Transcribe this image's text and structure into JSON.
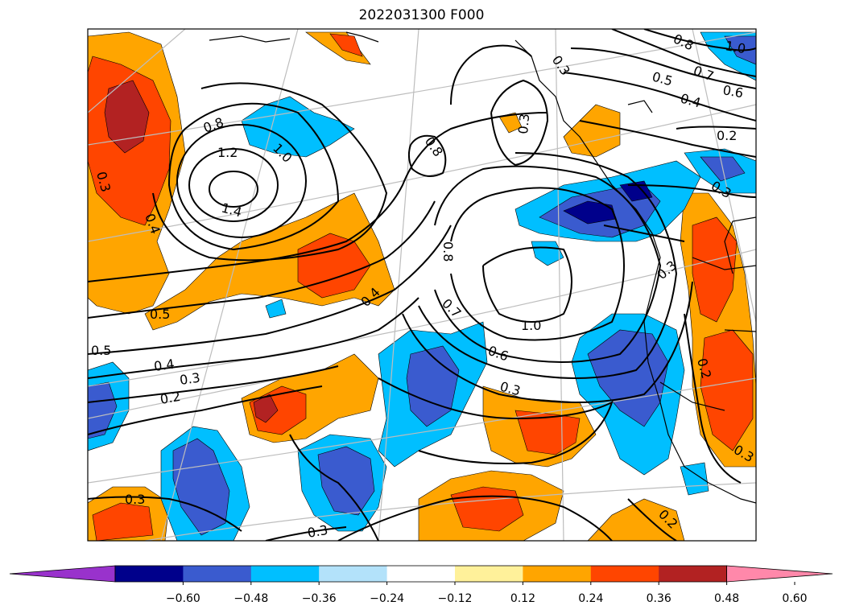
{
  "title": "2022031300 F000",
  "colorbar": {
    "extend_low_color": "#9932cc",
    "extend_high_color": "#ff88aa",
    "bins": [
      {
        "color": "#00008b"
      },
      {
        "color": "#3a5bcf"
      },
      {
        "color": "#00bfff"
      },
      {
        "color": "#b3e2fa"
      },
      {
        "color": "#ffffff"
      },
      {
        "color": "#fff19a"
      },
      {
        "color": "#ffa500"
      },
      {
        "color": "#ff4500"
      },
      {
        "color": "#b22222"
      }
    ],
    "ticks": [
      "−0.60",
      "−0.48",
      "−0.36",
      "−0.24",
      "−0.12",
      "0.12",
      "0.24",
      "0.36",
      "0.48",
      "0.60"
    ]
  },
  "contour_labels": [
    "0.3",
    "0.4",
    "0.5",
    "0.5",
    "0.4",
    "0.3",
    "0.2",
    "0.8",
    "1.0",
    "1.2",
    "1.4",
    "0.8",
    "0.7",
    "0.6",
    "0.3",
    "1.0",
    "0.8",
    "0.3",
    "0.3",
    "0.8",
    "0.7",
    "0.6",
    "0.4",
    "1.0",
    "0.5",
    "0.2",
    "0.3",
    "0.3",
    "0.2",
    "0.3",
    "0.3",
    "0.2",
    "0.3",
    "0.4"
  ],
  "colors": {
    "coastline": "#000000",
    "graticule": "#bdbdbd",
    "contour": "#000000"
  }
}
